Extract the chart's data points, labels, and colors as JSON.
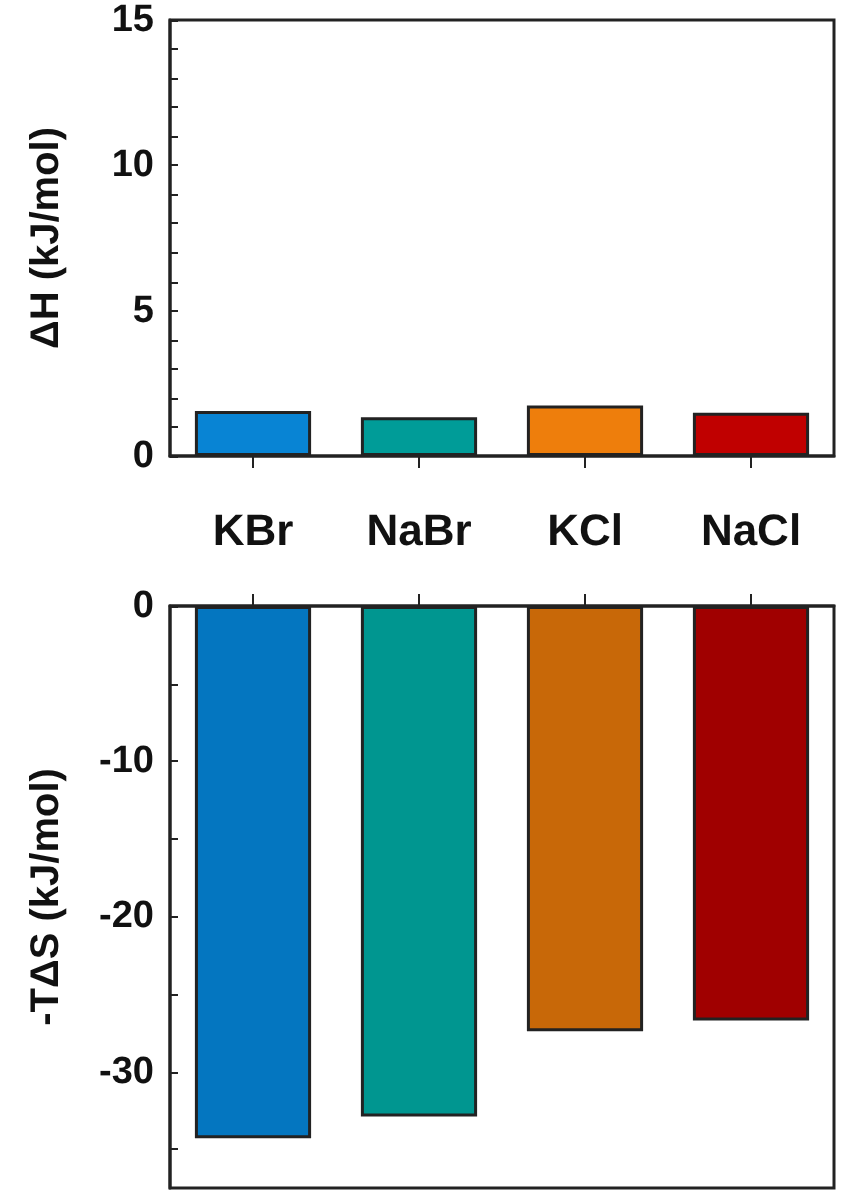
{
  "chart_data": [
    {
      "type": "bar",
      "ylabel": "ΔH (kJ/mol)",
      "categories": [
        "KBr",
        "NaBr",
        "KCl",
        "NaCl"
      ],
      "values": [
        1.55,
        1.33,
        1.74,
        1.49
      ],
      "colors": [
        "#0884d4",
        "#009c98",
        "#ee7e0c",
        "#c00000"
      ],
      "ylim": [
        0,
        15
      ],
      "yticks": [
        0,
        {
          "value": 1,
          "label": null
        },
        {
          "value": 2,
          "label": null
        },
        {
          "value": 3,
          "label": null
        },
        {
          "value": 4,
          "label": null
        },
        5,
        {
          "value": 6,
          "label": null
        },
        {
          "value": 7,
          "label": null
        },
        {
          "value": 8,
          "label": null
        },
        {
          "value": 9,
          "label": null
        },
        10,
        {
          "value": 11,
          "label": null
        },
        {
          "value": 12,
          "label": null
        },
        {
          "value": 13,
          "label": null
        },
        {
          "value": 14,
          "label": null
        },
        15
      ],
      "grid": false
    },
    {
      "type": "bar",
      "ylabel": "-TΔS (kJ/mol)",
      "categories": [
        null,
        null,
        null,
        null
      ],
      "values": [
        -34.3,
        -32.9,
        -27.4,
        -26.7
      ],
      "colors": [
        "#0476c0",
        "#009690",
        "#c86808",
        "#a00000"
      ],
      "ylim": [
        -37.5,
        0
      ],
      "yticks": [
        {
          "value": -35,
          "label": null
        },
        -30,
        {
          "value": -25,
          "label": null
        },
        -20,
        {
          "value": -15,
          "label": null
        },
        -10,
        {
          "value": -5,
          "label": null
        },
        0
      ],
      "grid": false,
      "tick_labels": "y"
    }
  ]
}
